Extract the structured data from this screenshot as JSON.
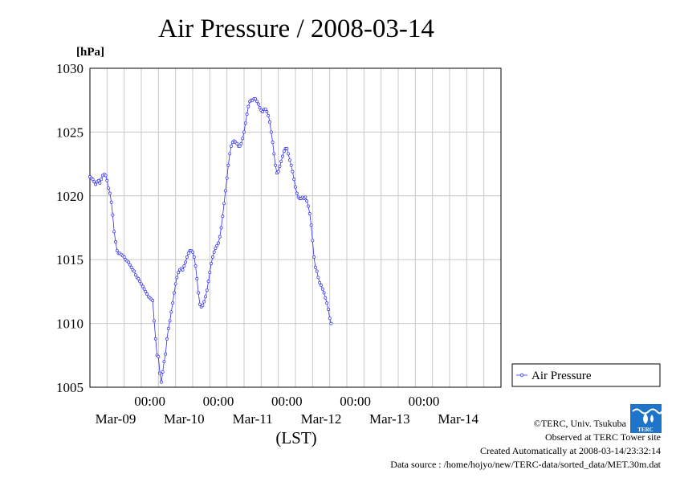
{
  "chart_data": {
    "type": "line",
    "title": "Air Pressure / 2008-03-14",
    "ylabel": "[hPa]",
    "xlabel": "(LST)",
    "ylim": [
      1005,
      1030
    ],
    "yticks": [
      "1005",
      "1010",
      "1015",
      "1020",
      "1025",
      "1030"
    ],
    "xlim_hours": [
      0,
      144
    ],
    "xtick_time": "00:00",
    "xtick_dates": [
      "Mar-09",
      "Mar-10",
      "Mar-11",
      "Mar-12",
      "Mar-13",
      "Mar-14"
    ],
    "grid": true,
    "legend_position": "right",
    "line_color": "#2d2df5",
    "series": [
      {
        "name": "Air Pressure",
        "interval_minutes": 30,
        "values": [
          1021.5,
          1021.4,
          1021.3,
          1021.1,
          1020.9,
          1021.1,
          1021.2,
          1021.0,
          1021.3,
          1021.6,
          1021.7,
          1021.6,
          1021.2,
          1020.6,
          1020.2,
          1019.5,
          1018.5,
          1017.2,
          1016.4,
          1015.7,
          1015.5,
          1015.5,
          1015.4,
          1015.3,
          1015.2,
          1015.0,
          1014.9,
          1014.8,
          1014.6,
          1014.4,
          1014.2,
          1014.1,
          1013.8,
          1013.6,
          1013.5,
          1013.3,
          1013.1,
          1012.9,
          1012.7,
          1012.5,
          1012.3,
          1012.1,
          1012.0,
          1011.9,
          1011.8,
          1010.2,
          1008.8,
          1007.5,
          1007.4,
          1006.1,
          1005.4,
          1006.2,
          1007.0,
          1007.6,
          1008.8,
          1009.6,
          1010.2,
          1010.9,
          1011.6,
          1012.4,
          1013.1,
          1013.6,
          1014.0,
          1014.2,
          1014.3,
          1014.2,
          1014.5,
          1014.8,
          1015.2,
          1015.5,
          1015.7,
          1015.7,
          1015.6,
          1015.2,
          1014.5,
          1013.5,
          1012.4,
          1011.5,
          1011.3,
          1011.4,
          1011.7,
          1012.1,
          1012.6,
          1013.3,
          1014.0,
          1014.7,
          1015.2,
          1015.6,
          1015.9,
          1016.1,
          1016.3,
          1016.8,
          1017.5,
          1018.4,
          1019.4,
          1020.4,
          1021.4,
          1022.4,
          1023.3,
          1023.9,
          1024.2,
          1024.3,
          1024.2,
          1024.1,
          1023.9,
          1023.9,
          1024.1,
          1024.5,
          1025.0,
          1025.7,
          1026.4,
          1027.0,
          1027.4,
          1027.5,
          1027.5,
          1027.6,
          1027.6,
          1027.4,
          1027.2,
          1026.9,
          1026.7,
          1026.6,
          1026.8,
          1026.8,
          1026.6,
          1026.3,
          1025.8,
          1025.0,
          1024.2,
          1023.3,
          1022.4,
          1021.8,
          1021.9,
          1022.3,
          1022.7,
          1023.1,
          1023.5,
          1023.7,
          1023.7,
          1023.3,
          1022.8,
          1022.4,
          1021.9,
          1021.3,
          1020.7,
          1020.2,
          1019.9,
          1019.8,
          1019.8,
          1019.9,
          1019.8,
          1019.9,
          1019.6,
          1019.2,
          1018.6,
          1017.7,
          1016.5,
          1015.2,
          1014.4,
          1014.1,
          1013.6,
          1013.2,
          1013.0,
          1012.7,
          1012.4,
          1012.0,
          1011.6,
          1011.1,
          1010.4,
          1010.0
        ]
      }
    ]
  },
  "footer": {
    "copyright": "©TERC, Univ. Tsukuba",
    "observed": "Observed at TERC Tower site",
    "created": "Created Automatically at 2008-03-14/23:32:14",
    "source": "Data source : /home/hojyo/new/TERC-data/sorted_data/MET.30m.dat"
  },
  "logo": {
    "text": "TERC"
  }
}
